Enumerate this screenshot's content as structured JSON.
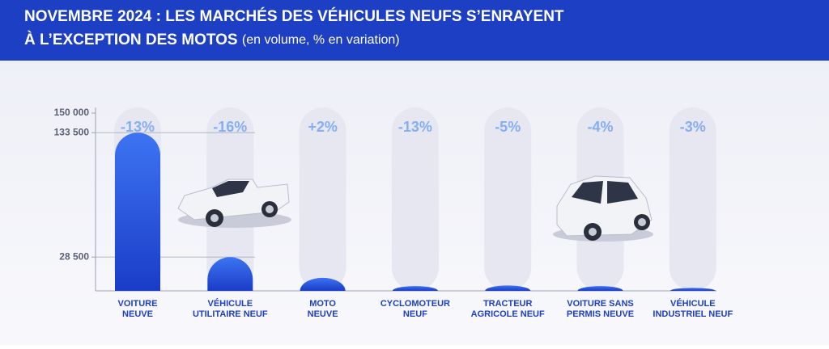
{
  "chart_data": {
    "type": "bar",
    "title_lines": [
      "NOVEMBRE 2024 : LES MARCHÉS DES VÉHICULES NEUFS S’ENRAYENT",
      "À L’EXCEPTION DES MOTOS"
    ],
    "subtitle": "(en volume, % en variation)",
    "categories": [
      [
        "VOITURE",
        "NEUVE"
      ],
      [
        "VÉHICULE",
        "UTILITAIRE NEUF"
      ],
      [
        "MOTO",
        "NEUVE"
      ],
      [
        "CYCLOMOTEUR",
        "NEUF"
      ],
      [
        "TRACTEUR",
        "AGRICOLE NEUF"
      ],
      [
        "VOITURE SANS",
        "PERMIS NEUVE"
      ],
      [
        "VÉHICULE",
        "INDUSTRIEL NEUF"
      ]
    ],
    "values": [
      133500,
      28500,
      11000,
      4000,
      4500,
      4000,
      2500
    ],
    "variations": [
      {
        "value": -13,
        "label": "-13%"
      },
      {
        "value": -16,
        "label": "-16%"
      },
      {
        "value": 2,
        "label": "+2%"
      },
      {
        "value": -13,
        "label": "-13%"
      },
      {
        "value": -5,
        "label": "-5%"
      },
      {
        "value": -4,
        "label": "-4%"
      },
      {
        "value": -3,
        "label": "-3%"
      }
    ],
    "color": "#1f4fe0",
    "ylim": [
      0,
      150000
    ],
    "yticks": [
      {
        "value": 150000,
        "label": "150 000"
      },
      {
        "value": 133500,
        "label": "133 500"
      },
      {
        "value": 28500,
        "label": "28 500"
      }
    ]
  }
}
